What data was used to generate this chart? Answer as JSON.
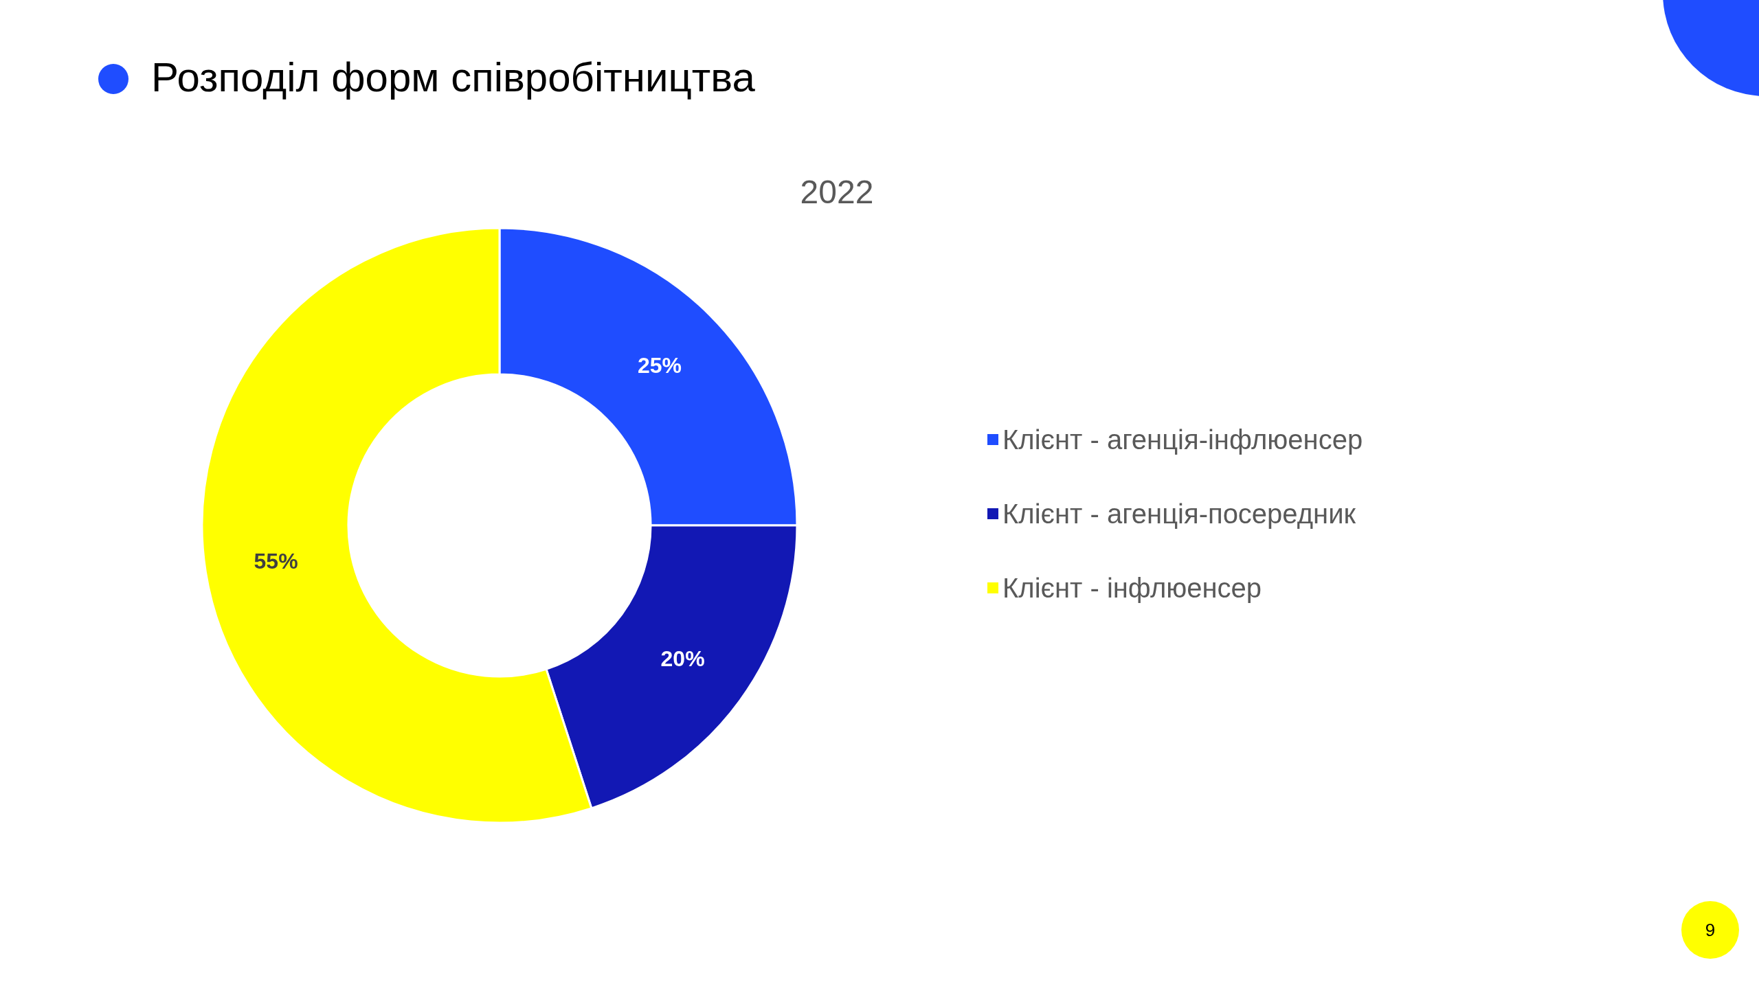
{
  "chart_data": {
    "type": "donut",
    "title": "Розподіл форм співробітництва",
    "subtitle": "2022",
    "categories": [
      "Клієнт - агенція-інфлюенсер",
      "Клієнт - агенція-посередник",
      "Клієнт - інфлюенсер"
    ],
    "values": [
      25,
      20,
      55
    ],
    "colors": [
      "#1f4dff",
      "#1218b4",
      "#ffff00"
    ],
    "value_labels": [
      "25%",
      "20%",
      "55%"
    ],
    "legend": "right",
    "annotations": [
      "9"
    ]
  }
}
